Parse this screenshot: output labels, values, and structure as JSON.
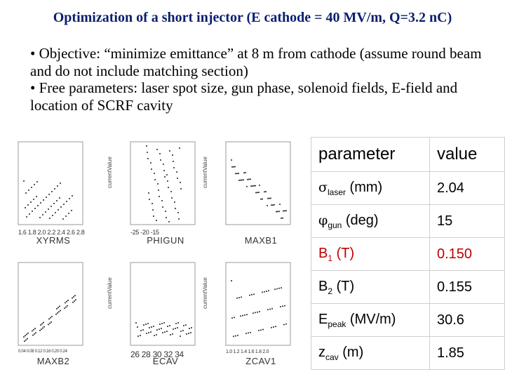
{
  "title": "Optimization of a short injector (E cathode = 40 MV/m, Q=3.2 nC)",
  "bullets": [
    "• Objective: “minimize emittance” at 8 m from cathode (assume round beam and do not include matching section)",
    "• Free parameters: laser spot size, gun phase, solenoid fields, E-field and location of SCRF cavity"
  ],
  "plots": [
    {
      "ylabel": "currentValue",
      "ticks": "1.6 1.8 2.0 2.2 2.4 2.6 2.8",
      "xlabel": "XYRMS"
    },
    {
      "ylabel": "currentValue",
      "ticks": "-25 -20 -15",
      "xlabel": "PHIGUN"
    },
    {
      "ylabel": "currentValue",
      "ticks": "",
      "xlabel": "MAXB1"
    },
    {
      "ylabel": "currentValue",
      "ticks": "0.04 0.08 0.12 0.16 0.20 0.24",
      "xlabel": "MAXB2"
    },
    {
      "ylabel": "currentValue",
      "ticks": "26 28 30 32 34",
      "xlabel": "ECAV"
    },
    {
      "ylabel": "currentValue",
      "ticks": "1.0 1.2 1.4 1.6 1.8 2.0",
      "xlabel": "ZCAV1"
    }
  ],
  "table": {
    "header": {
      "parameter": "parameter",
      "value": "value"
    },
    "rows": [
      {
        "sym": "σ",
        "sub": "laser",
        "rest": " (mm)",
        "value": "2.04",
        "color": "#000000"
      },
      {
        "sym": "φ",
        "sub": "gun",
        "rest": " (deg)",
        "value": "15",
        "color": "#000000"
      },
      {
        "sym": "B",
        "sub": "1",
        "rest": " (T)",
        "value": "0.150",
        "color": "#c00000"
      },
      {
        "sym": "B",
        "sub": "2",
        "rest": " (T)",
        "value": "0.155",
        "color": "#000000"
      },
      {
        "sym": "E",
        "sub": "peak",
        "rest": " (MV/m)",
        "value": "30.6",
        "color": "#000000"
      },
      {
        "sym": "z",
        "sub": "cav",
        "rest": " (m)",
        "value": "1.85",
        "color": "#000000"
      }
    ]
  }
}
